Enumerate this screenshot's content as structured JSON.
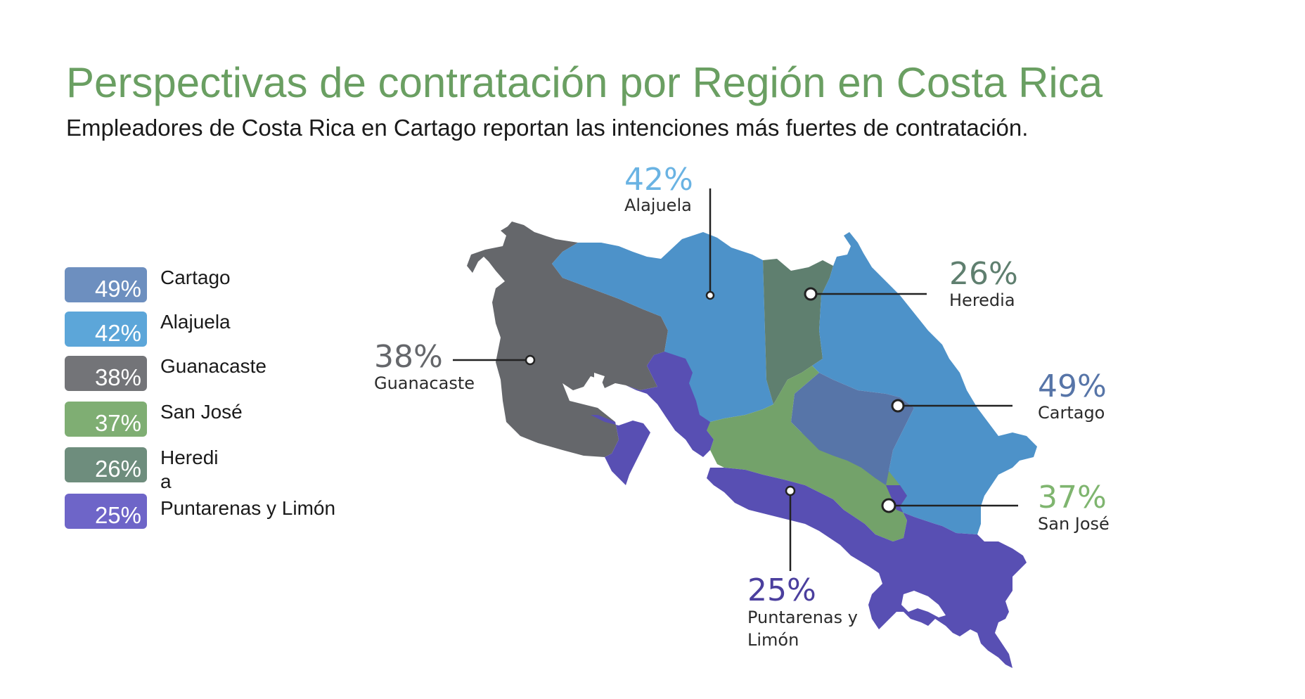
{
  "title": "Perspectivas de contratación por Región en Costa Rica",
  "subtitle": "Empleadores de Costa Rica en Cartago reportan las intenciones más fuertes de contratación.",
  "colors": {
    "title": "#6a9f62",
    "cartago": "#5775a8",
    "alajuela": "#4d92c9",
    "guanacaste": "#65676b",
    "san_jose": "#73a26a",
    "heredia": "#5f7f6f",
    "puntarenas_limon": "#584fb3"
  },
  "legend": [
    {
      "value": "49%",
      "label": "Cartago",
      "color": "#6d8fbf"
    },
    {
      "value": "42%",
      "label": "Alajuela",
      "color": "#5ca6d9"
    },
    {
      "value": "38%",
      "label": "Guanacaste",
      "color": "#737478"
    },
    {
      "value": "37%",
      "label": "San José",
      "color": "#7fae73"
    },
    {
      "value": "26%",
      "label": "Heredi a",
      "color": "#6e8d7d"
    },
    {
      "value": "25%",
      "label": "Puntarenas y Limón",
      "color": "#6e65c8"
    }
  ],
  "callouts": {
    "alajuela": {
      "value": "42%",
      "name": "Alajuela",
      "color": "#6ab3e3"
    },
    "heredia": {
      "value": "26%",
      "name": "Heredia",
      "color": "#5f7f6f"
    },
    "guanacaste": {
      "value": "38%",
      "name": "Guanacaste",
      "color": "#65676b"
    },
    "cartago": {
      "value": "49%",
      "name": "Cartago",
      "color": "#5775a8"
    },
    "san_jose": {
      "value": "37%",
      "name": "San José",
      "color": "#7fb56f"
    },
    "puntarenas_limon": {
      "value": "25%",
      "name_line1": "Puntarenas y",
      "name_line2": "Limón",
      "color": "#4b3f9e"
    }
  }
}
